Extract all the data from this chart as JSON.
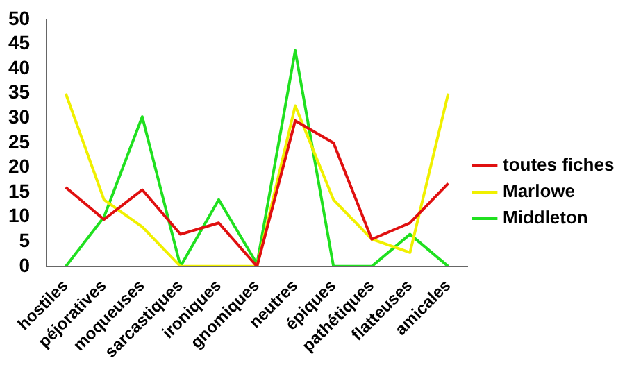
{
  "chart_data": {
    "type": "line",
    "categories": [
      "hostiles",
      "péjoratives",
      "moqueuses",
      "sarcastiques",
      "ironiques",
      "gnomiques",
      "neutres",
      "épiques",
      "pathétiques",
      "flatteuses",
      "amicales"
    ],
    "series": [
      {
        "name": "toutes fiches",
        "color": "#e01010",
        "values": [
          16,
          9.5,
          15.5,
          6.5,
          8.8,
          0,
          29.5,
          25,
          5.5,
          8.8,
          16.8
        ]
      },
      {
        "name": "Marlowe",
        "color": "#f0f000",
        "values": [
          35,
          13.5,
          8,
          0,
          0,
          0,
          32.5,
          13.5,
          5.5,
          2.8,
          35
        ]
      },
      {
        "name": "Middleton",
        "color": "#20e020",
        "values": [
          0,
          10,
          30.3,
          0,
          13.5,
          0.5,
          43.7,
          0,
          0,
          6.5,
          0
        ]
      }
    ],
    "ylim": [
      0,
      50
    ],
    "yticks": [
      0,
      5,
      10,
      15,
      20,
      25,
      30,
      35,
      40,
      45,
      50
    ],
    "grid": false,
    "legend": "right",
    "marker": "none",
    "line_style": "solid"
  }
}
